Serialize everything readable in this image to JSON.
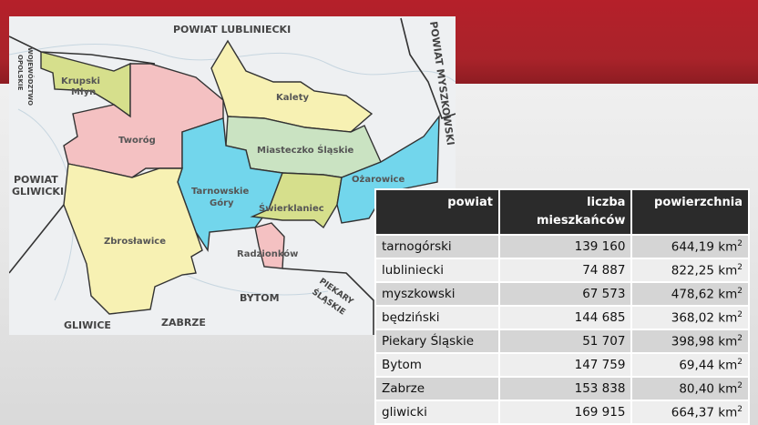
{
  "map": {
    "regions": [
      {
        "name": "Krupski Młyn",
        "color": "#d6df8c"
      },
      {
        "name": "Tworóg",
        "color": "#f4c1c2"
      },
      {
        "name": "Kalety",
        "color": "#f7f1b3"
      },
      {
        "name": "Miasteczko Śląskie",
        "color": "#cae3c2"
      },
      {
        "name": "Tarnowskie Góry",
        "color": "#72d6ec"
      },
      {
        "name": "Świerklaniec",
        "color": "#d6df8c"
      },
      {
        "name": "Ożarowice",
        "color": "#72d6ec"
      },
      {
        "name": "Radzionków",
        "color": "#f4c1c2"
      },
      {
        "name": "Zbrosławice",
        "color": "#f7f1b3"
      }
    ],
    "labels": {
      "krupski1": "Krupski",
      "krupski2": "Młyn",
      "tworog": "Tworóg",
      "kalety": "Kalety",
      "miasteczko": "Miasteczko Śląskie",
      "tg1": "Tarnowskie",
      "tg2": "Góry",
      "swierklaniec": "Świerklaniec",
      "ozarowice": "Ożarowice",
      "radzionkow": "Radzionków",
      "zbroslawice": "Zbrosławice"
    },
    "surrounding": {
      "lubliniecki": "POWIAT LUBLINIECKI",
      "myszkowski": "POWIAT MYSZKOWSKI",
      "opolskie1": "WOJEWÓDZTWO",
      "opolskie2": "OPOLSKIE",
      "gliwicki1": "POWIAT",
      "gliwicki2": "GLIWICKI",
      "bytom": "BYTOM",
      "zabrze": "ZABRZE",
      "gliwice": "GLIWICE",
      "piekary1": "PIEKARY",
      "piekary2": "ŚLĄSKIE"
    }
  },
  "table": {
    "headers": [
      "powiat",
      "liczba mieszkańców",
      "powierzchnia"
    ],
    "unit": "km",
    "unit_sup": "2",
    "rows": [
      {
        "powiat": "tarnogórski",
        "pop": "139 160",
        "area": "644,19"
      },
      {
        "powiat": "lubliniecki",
        "pop": "74 887",
        "area": "822,25"
      },
      {
        "powiat": "myszkowski",
        "pop": "67 573",
        "area": "478,62"
      },
      {
        "powiat": "będziński",
        "pop": "144 685",
        "area": "368,02"
      },
      {
        "powiat": "Piekary Śląskie",
        "pop": "51 707",
        "area": "398,98"
      },
      {
        "powiat": "Bytom",
        "pop": "147 759",
        "area": "69,44"
      },
      {
        "powiat": "Zabrze",
        "pop": "153 838",
        "area": "80,40"
      },
      {
        "powiat": "gliwicki",
        "pop": "169 915",
        "area": "664,37"
      }
    ]
  }
}
